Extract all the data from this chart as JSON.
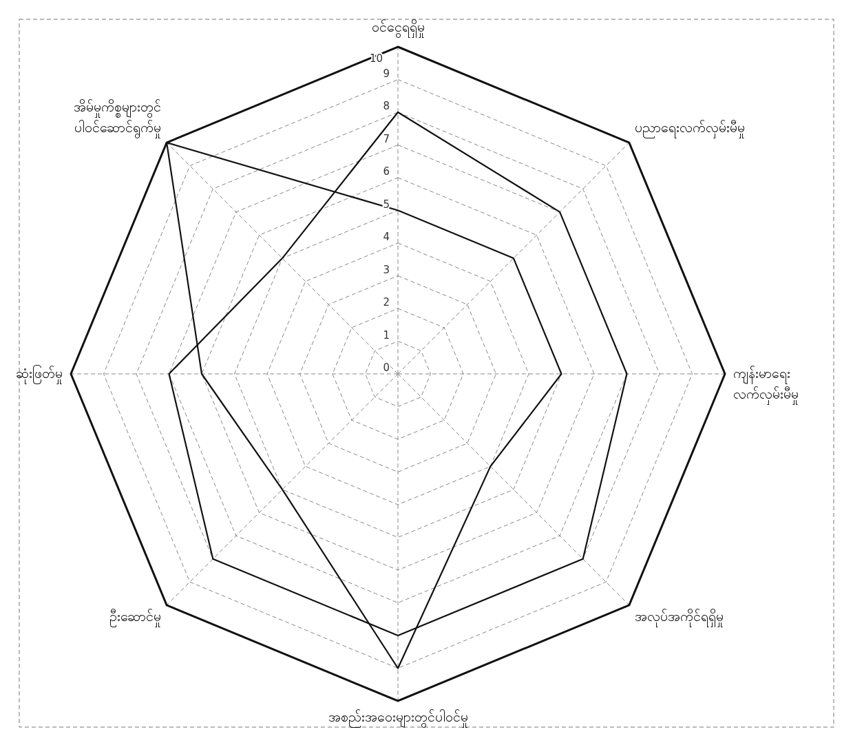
{
  "chart_data": {
    "type": "radar",
    "categories": [
      "ဝင်ငွေရရှိမှု",
      "ပညာရေးလက်လှမ်းမီမှု",
      "ကျန်းမာရေး\nလက်လှမ်းမီမှု",
      "အလုပ်အကိုင်ရရှိမှု",
      "အစည်းအဝေးများတွင်ပါဝင်မှု",
      "ဦးဆောင်မှု",
      "ဆုံးဖြတ်မှု",
      "အိမ်မှုကိစ္စများတွင်\nပါဝင်ဆောင်ရွက်မှု"
    ],
    "series": [
      {
        "color": "#111111",
        "values": [
          5,
          5,
          5,
          4,
          9,
          5,
          6,
          10
        ]
      },
      {
        "color": "#111111",
        "values": [
          8,
          7,
          7,
          8,
          8,
          8,
          7,
          5
        ]
      }
    ],
    "ylim": [
      0,
      10
    ],
    "yticks": [
      0,
      1,
      2,
      3,
      4,
      5,
      6,
      7,
      8,
      9,
      10
    ],
    "grid": true,
    "marker": "none",
    "line_style": "solid"
  }
}
